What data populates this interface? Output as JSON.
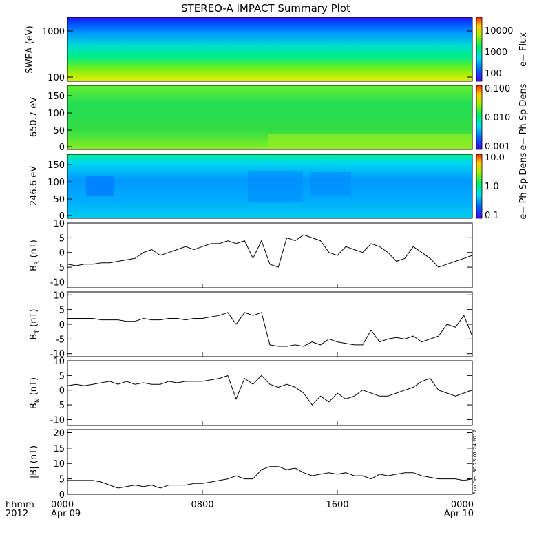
{
  "title": "STEREO-A IMPACT Summary Plot",
  "time_axis": {
    "row_label_1": "hhmm",
    "row_label_2": "2012",
    "ticks": [
      {
        "t": 0,
        "hhmm": "0000",
        "date": "Apr 09"
      },
      {
        "t": 8,
        "hhmm": "0800",
        "date": ""
      },
      {
        "t": 16,
        "hhmm": "1600",
        "date": ""
      },
      {
        "t": 24,
        "hhmm": "0000",
        "date": "Apr 10"
      }
    ]
  },
  "timestamp": "Sun Dec 30 23:07:24 2012",
  "chart_data": [
    {
      "type": "heatmap",
      "ylabel": "SWEA (eV)",
      "yscale": "log",
      "ylim": [
        100,
        1900
      ],
      "yticks": [
        "1000",
        "100"
      ],
      "colorbar": {
        "label": "e− Flux",
        "scale": "log",
        "ticks": [
          "10000",
          "1000",
          "100"
        ]
      },
      "description_values": {
        "low_energy_level": "yellow-green",
        "mid_energy_level": "cyan-green",
        "high_energy_level": "blue"
      }
    },
    {
      "type": "heatmap",
      "ylabel": "650.7 eV",
      "ylim": [
        0,
        180
      ],
      "yticks": [
        "150",
        "100",
        "50",
        "0"
      ],
      "colorbar": {
        "label": "e− Ph Sp Dens",
        "scale": "log",
        "ticks": [
          "0.100",
          "0.010",
          "0.001"
        ]
      }
    },
    {
      "type": "heatmap",
      "ylabel": "246.6 eV",
      "ylim": [
        0,
        180
      ],
      "yticks": [
        "150",
        "100",
        "50",
        "0"
      ],
      "colorbar": {
        "label": "e− Ph Sp Dens",
        "scale": "log",
        "ticks": [
          "10.0",
          "1.0",
          "0.1"
        ]
      }
    },
    {
      "type": "line",
      "ylabel_base": "B",
      "ylabel_sub": "R",
      "ylabel_unit": " (nT)",
      "ylim": [
        -12,
        10
      ],
      "yticks": [
        "10",
        "5",
        "0",
        "-5",
        "-10"
      ],
      "x": [
        0,
        0.5,
        1,
        1.5,
        2,
        2.5,
        3,
        3.5,
        4,
        4.5,
        5,
        5.5,
        6,
        6.5,
        7,
        7.5,
        8,
        8.5,
        9,
        9.5,
        10,
        10.5,
        11,
        11.5,
        12,
        12.5,
        13,
        13.5,
        14,
        14.5,
        15,
        15.5,
        16,
        16.5,
        17,
        17.5,
        18,
        18.5,
        19,
        19.5,
        20,
        20.5,
        21,
        21.5,
        22,
        22.5,
        23,
        23.5,
        24
      ],
      "y": [
        -4,
        -4.5,
        -4,
        -4,
        -3.5,
        -3.5,
        -3,
        -2.5,
        -2,
        0,
        1,
        -1,
        0,
        1,
        2,
        1,
        2,
        3,
        3,
        4,
        3,
        4,
        -2,
        4,
        -4,
        -5,
        5,
        4,
        6,
        5,
        4,
        0,
        -1,
        2,
        1,
        0,
        3,
        2,
        0,
        -3,
        -2,
        2,
        0,
        -2,
        -5,
        -4,
        -3,
        -2,
        -1
      ]
    },
    {
      "type": "line",
      "ylabel_base": "B",
      "ylabel_sub": "T",
      "ylabel_unit": " (nT)",
      "ylim": [
        -11,
        11
      ],
      "yticks": [
        "10",
        "5",
        "0",
        "-5",
        "-10"
      ],
      "x": [
        0,
        0.5,
        1,
        1.5,
        2,
        2.5,
        3,
        3.5,
        4,
        4.5,
        5,
        5.5,
        6,
        6.5,
        7,
        7.5,
        8,
        8.5,
        9,
        9.5,
        10,
        10.5,
        11,
        11.5,
        12,
        12.5,
        13,
        13.5,
        14,
        14.5,
        15,
        15.5,
        16,
        16.5,
        17,
        17.5,
        18,
        18.5,
        19,
        19.5,
        20,
        20.5,
        21,
        21.5,
        22,
        22.5,
        23,
        23.5,
        24
      ],
      "y": [
        2,
        2,
        2,
        2,
        1.5,
        1.5,
        1.5,
        1,
        1,
        2,
        1.5,
        1.5,
        2,
        2,
        1.5,
        2,
        2,
        2.5,
        3,
        4,
        0,
        4,
        3,
        4,
        -7,
        -7.5,
        -7.5,
        -7,
        -7.5,
        -6,
        -7,
        -5,
        -6,
        -6.5,
        -7,
        -7,
        -2,
        -6,
        -5,
        -4.5,
        -5,
        -4,
        -6,
        -5,
        -4,
        0,
        -1,
        3,
        -4
      ]
    },
    {
      "type": "line",
      "ylabel_base": "B",
      "ylabel_sub": "N",
      "ylabel_unit": " (nT)",
      "ylim": [
        -12,
        10
      ],
      "yticks": [
        "10",
        "5",
        "0",
        "-5",
        "-10"
      ],
      "x": [
        0,
        0.5,
        1,
        1.5,
        2,
        2.5,
        3,
        3.5,
        4,
        4.5,
        5,
        5.5,
        6,
        6.5,
        7,
        7.5,
        8,
        8.5,
        9,
        9.5,
        10,
        10.5,
        11,
        11.5,
        12,
        12.5,
        13,
        13.5,
        14,
        14.5,
        15,
        15.5,
        16,
        16.5,
        17,
        17.5,
        18,
        18.5,
        19,
        19.5,
        20,
        20.5,
        21,
        21.5,
        22,
        22.5,
        23,
        23.5,
        24
      ],
      "y": [
        1.5,
        2,
        1.5,
        2,
        2.5,
        3,
        2,
        3,
        2,
        2.5,
        2,
        2,
        3,
        2.5,
        3,
        3,
        3,
        3.5,
        4,
        5,
        -3,
        4,
        2,
        5,
        2,
        1,
        2,
        1,
        -1,
        -5,
        -2,
        -4,
        -1,
        -3,
        -2,
        0,
        -1,
        -2,
        -2,
        -1,
        0,
        1,
        3,
        4,
        0,
        -1,
        -2,
        -1,
        0
      ]
    },
    {
      "type": "line",
      "ylabel": "|B| (nT)",
      "ylim": [
        0,
        21
      ],
      "yticks": [
        "20",
        "15",
        "10",
        "5",
        "0"
      ],
      "x": [
        0,
        0.5,
        1,
        1.5,
        2,
        2.5,
        3,
        3.5,
        4,
        4.5,
        5,
        5.5,
        6,
        6.5,
        7,
        7.5,
        8,
        8.5,
        9,
        9.5,
        10,
        10.5,
        11,
        11.5,
        12,
        12.5,
        13,
        13.5,
        14,
        14.5,
        15,
        15.5,
        16,
        16.5,
        17,
        17.5,
        18,
        18.5,
        19,
        19.5,
        20,
        20.5,
        21,
        21.5,
        22,
        22.5,
        23,
        23.5,
        24
      ],
      "y": [
        4.5,
        4.5,
        4.5,
        4.5,
        4,
        3,
        2,
        2.5,
        3,
        2.5,
        3,
        2,
        3,
        3,
        3,
        3.5,
        3.5,
        4,
        4.5,
        5,
        6,
        5,
        5,
        8,
        9,
        9,
        8,
        8.5,
        7,
        6,
        6.5,
        7,
        6.5,
        7,
        6,
        6,
        5,
        6.5,
        6,
        6.5,
        7,
        7,
        6,
        5.5,
        5,
        5,
        5,
        4.5,
        5
      ]
    }
  ]
}
